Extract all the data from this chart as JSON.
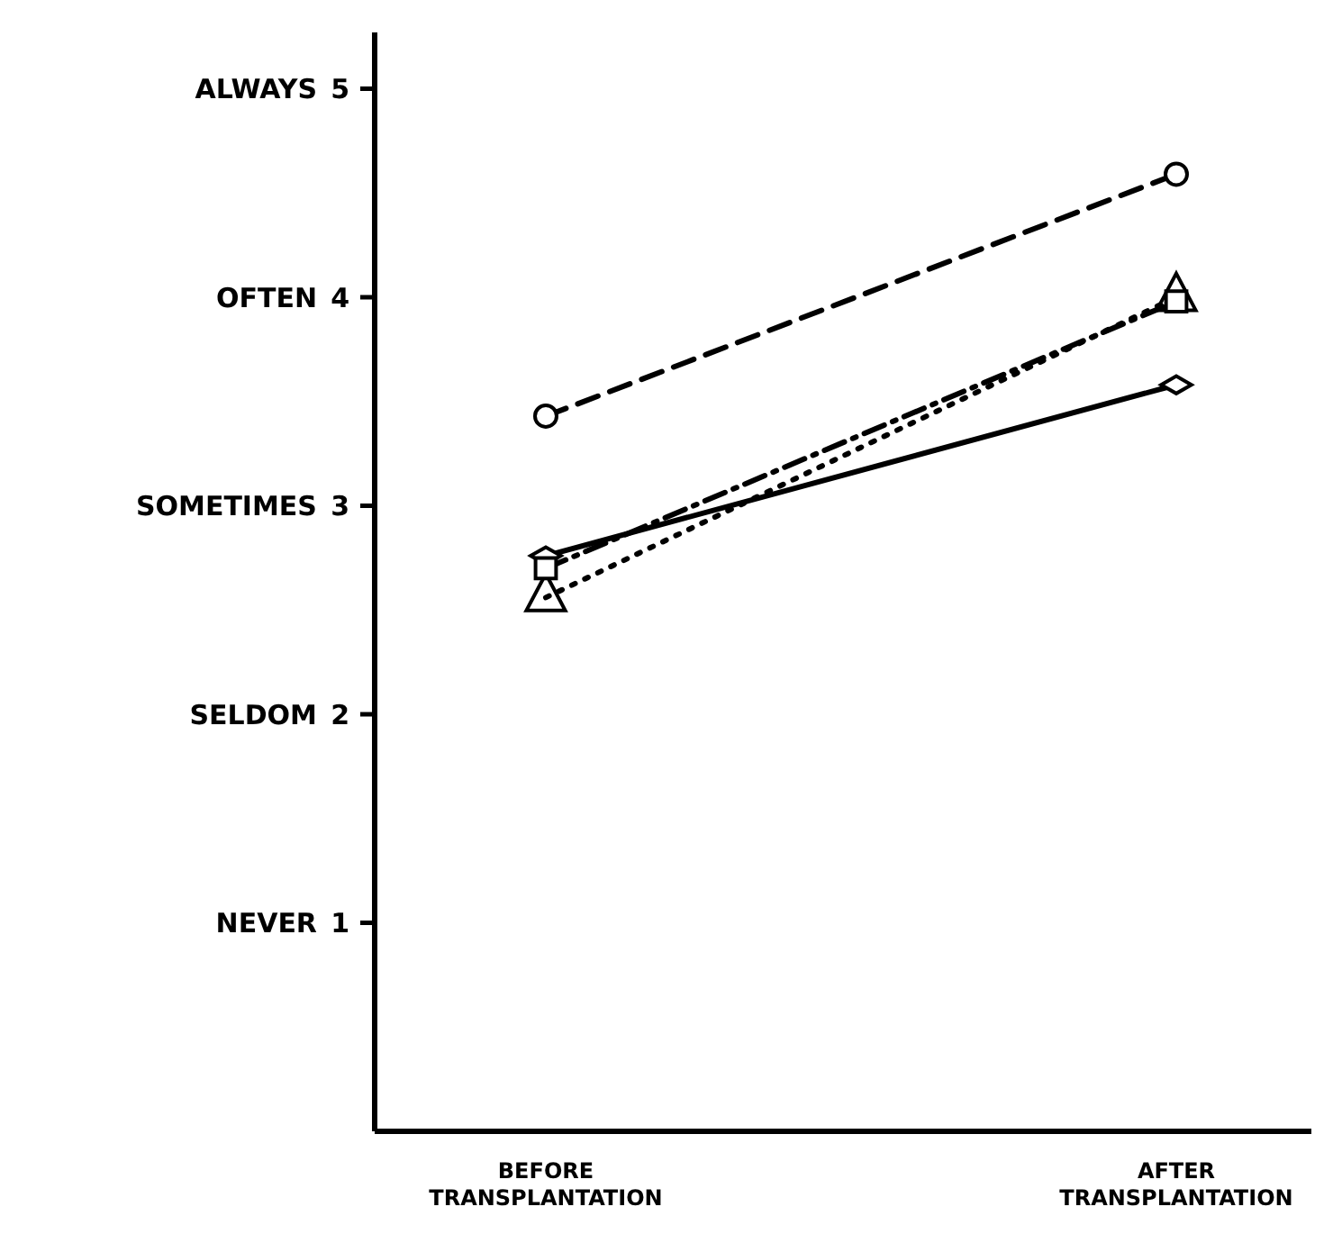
{
  "chart_data": {
    "type": "line",
    "categories": [
      "BEFORE TRANSPLANTATION",
      "AFTER TRANSPLANTATION"
    ],
    "series": [
      {
        "color": "#000000",
        "values": [
          3.43,
          4.59
        ],
        "marker": "circle",
        "line_style": "dashed"
      },
      {
        "color": "#000000",
        "values": [
          2.76,
          3.58
        ],
        "marker": "diamond",
        "line_style": "solid"
      },
      {
        "color": "#000000",
        "values": [
          2.56,
          4.0
        ],
        "marker": "triangle",
        "line_style": "dotted"
      },
      {
        "color": "#000000",
        "values": [
          2.7,
          3.98
        ],
        "marker": "square",
        "line_style": "dashdot"
      }
    ],
    "ylim": [
      0,
      5.27
    ],
    "yticks": [
      1,
      2,
      3,
      4,
      5
    ],
    "annotations": [
      "NEVER",
      "SELDOM",
      "SOMETIMES",
      "OFTEN",
      "ALWAYS"
    ],
    "grid": false
  }
}
